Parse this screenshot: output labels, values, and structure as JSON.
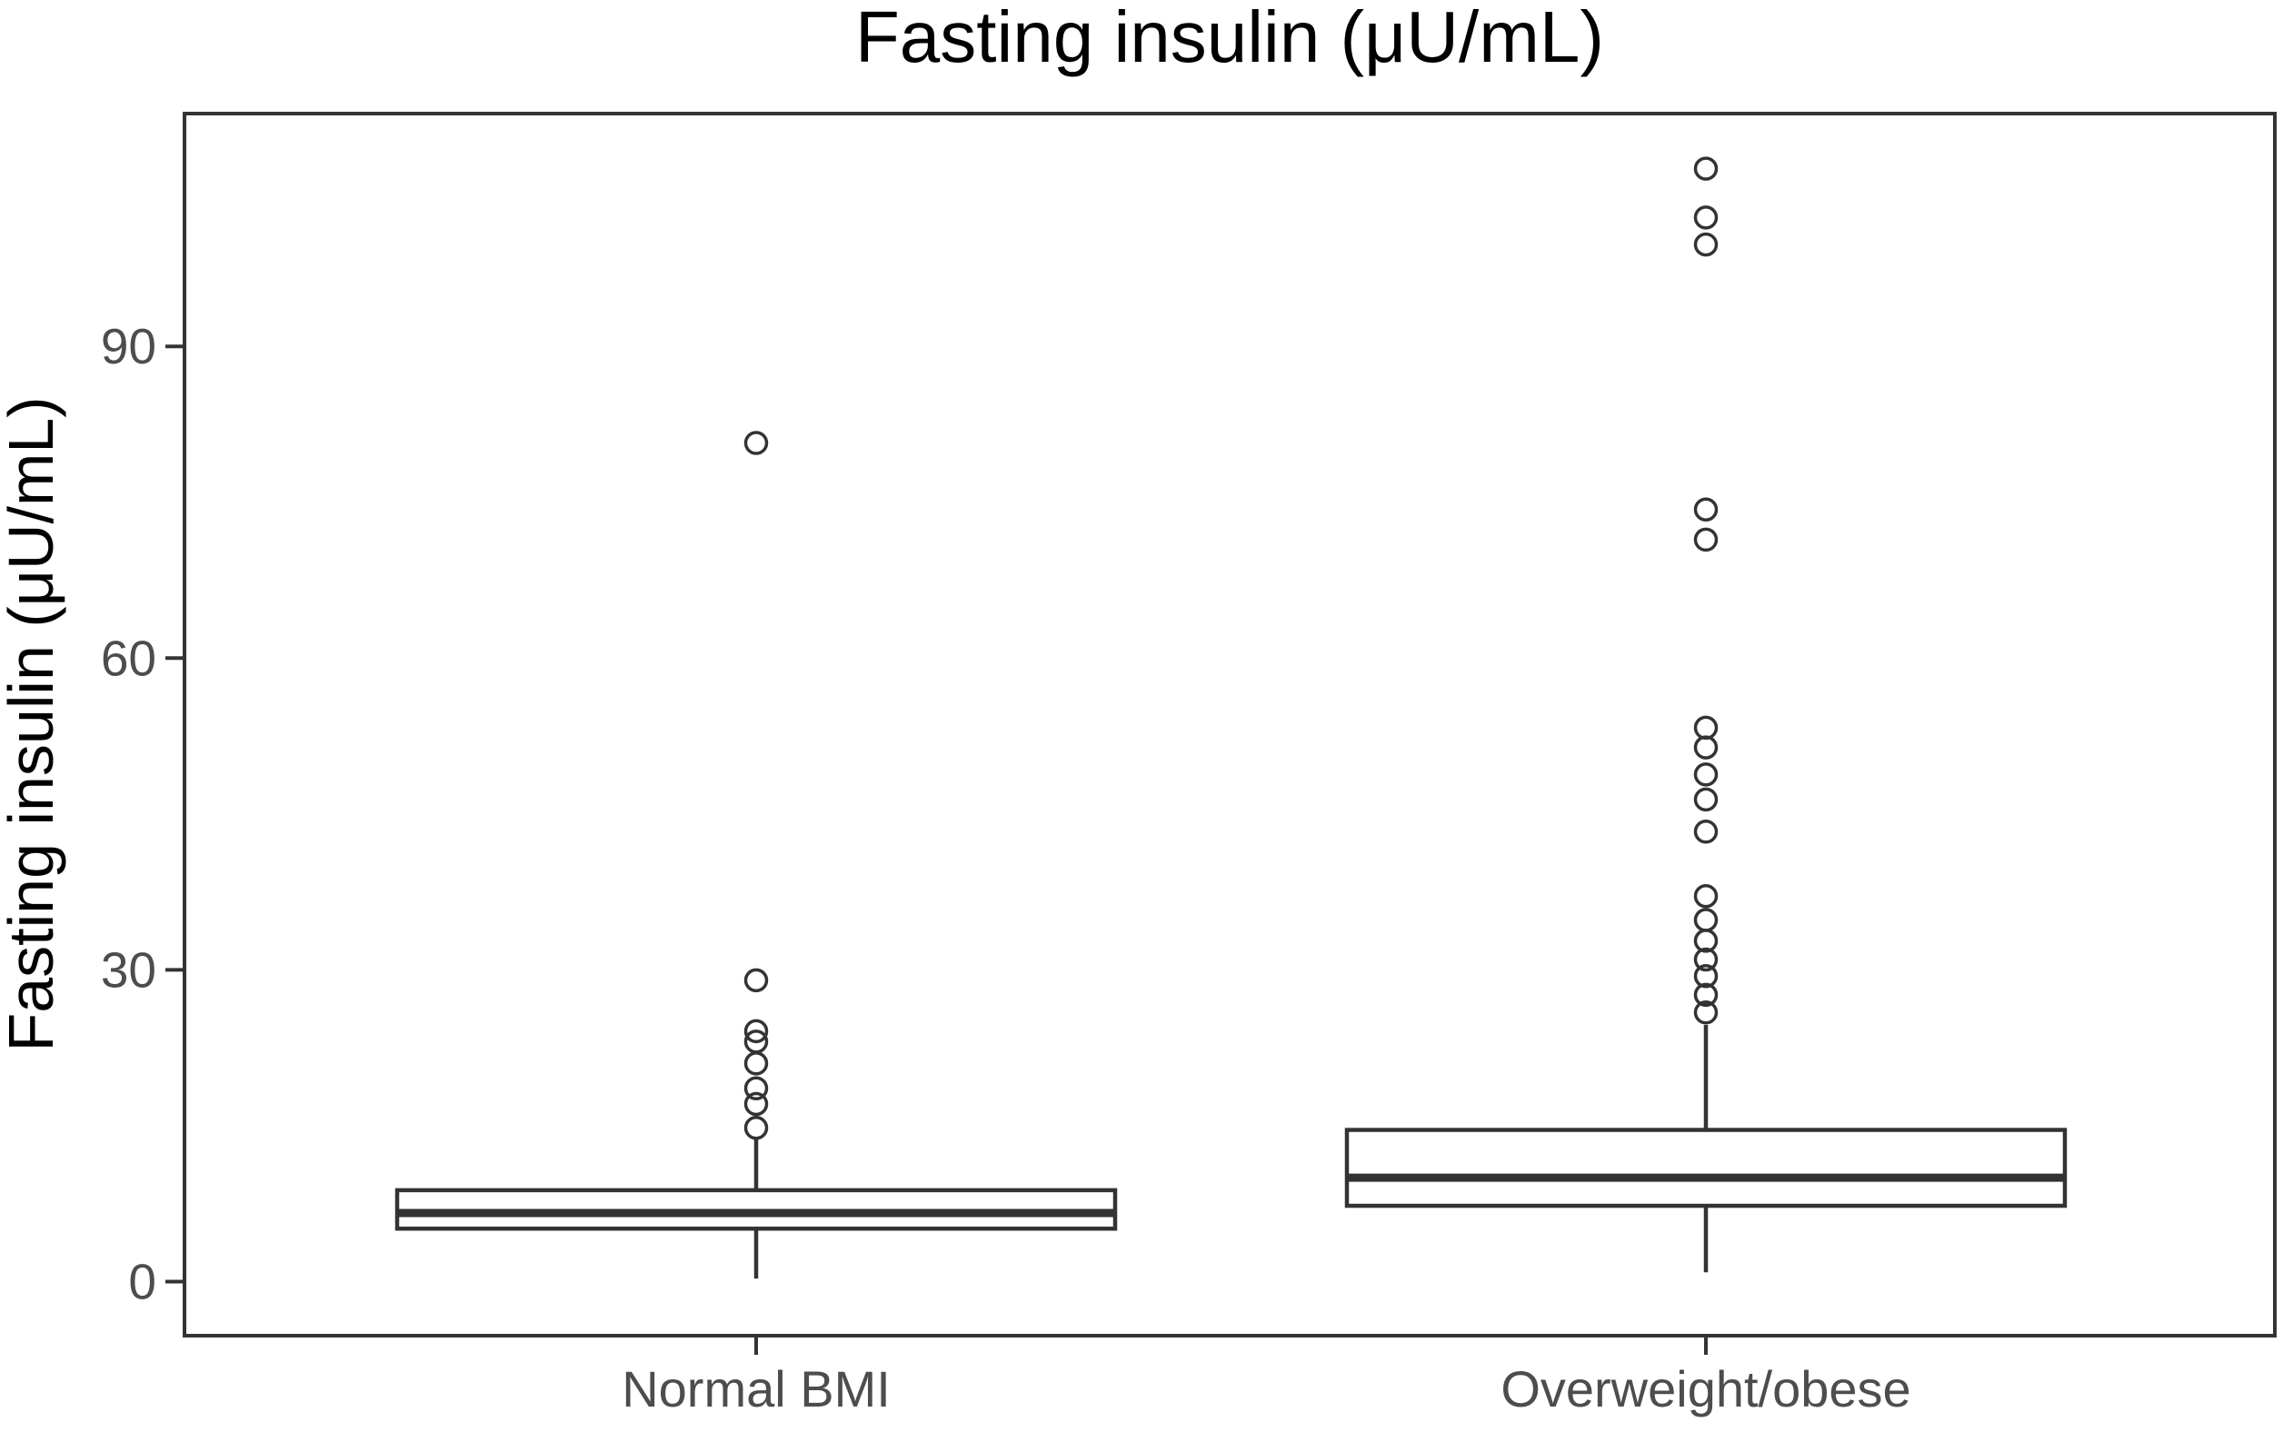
{
  "page": {
    "background": "#ffffff"
  },
  "chart_data": {
    "type": "boxplot",
    "title": "Fasting insulin (μU/mL)",
    "ylabel": "Fasting insulin (μU/mL)",
    "xlabel": "",
    "categories": [
      "Normal BMI",
      "Overweight/obese"
    ],
    "yticks": [
      0,
      30,
      60,
      90
    ],
    "ylim": [
      -5.2,
      112.4
    ],
    "grid": false,
    "legend": "none",
    "series": [
      {
        "name": "Normal BMI",
        "q1": 5.1,
        "median": 6.6,
        "q3": 8.8,
        "whisker_low": 0.3,
        "whisker_high": 13.8,
        "outliers": [
          14.8,
          17.1,
          18.6,
          21.0,
          23.1,
          24.1,
          29.0,
          80.7
        ]
      },
      {
        "name": "Overweight/obese",
        "q1": 7.3,
        "median": 10.0,
        "q3": 14.6,
        "whisker_low": 0.9,
        "whisker_high": 24.7,
        "outliers": [
          25.9,
          27.6,
          29.4,
          31.0,
          32.8,
          34.8,
          37.1,
          43.3,
          46.4,
          48.8,
          51.4,
          53.3,
          71.4,
          74.3,
          99.8,
          102.4,
          107.1
        ]
      }
    ],
    "colors": {
      "box_stroke": "#333333",
      "panel_border": "#333333",
      "axis_text": "#4d4d4d",
      "title_text": "#000000",
      "background": "#ffffff"
    }
  }
}
